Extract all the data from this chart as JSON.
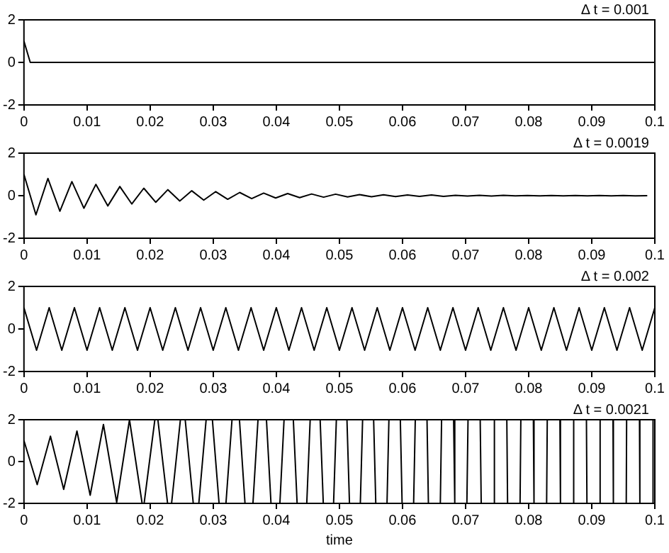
{
  "chart_data": [
    {
      "type": "line",
      "annotations": [
        "Δ t = 0.001"
      ],
      "color": "#000000",
      "x": [
        0,
        0.001,
        0.1
      ],
      "values": [
        1,
        0,
        0
      ],
      "xlim": [
        0,
        0.1
      ],
      "ylim": [
        -2,
        2
      ],
      "xticks": [
        0,
        0.01,
        0.02,
        0.03,
        0.04,
        0.05,
        0.06,
        0.07,
        0.08,
        0.09,
        0.1
      ],
      "yticks": [
        -2,
        0,
        2
      ]
    },
    {
      "type": "line",
      "annotations": [
        "Δ t = 0.0019"
      ],
      "color": "#000000",
      "x": [
        0,
        0.0019,
        0.0038,
        0.0057,
        0.0076,
        0.0095,
        0.0114,
        0.0133,
        0.0152,
        0.0171,
        0.019,
        0.0209,
        0.0228,
        0.0247,
        0.0266,
        0.0285,
        0.0304,
        0.0323,
        0.0342,
        0.0361,
        0.038,
        0.0399,
        0.0418,
        0.0437,
        0.0456,
        0.0475,
        0.0494,
        0.0513,
        0.0532,
        0.0551,
        0.057,
        0.0589,
        0.0608,
        0.0627,
        0.0646,
        0.0665,
        0.0684,
        0.0703,
        0.0722,
        0.0741,
        0.076,
        0.0779,
        0.0798,
        0.0817,
        0.0836,
        0.0855,
        0.0874,
        0.0893,
        0.0912,
        0.0931,
        0.095,
        0.0969,
        0.0988
      ],
      "values": [
        1,
        -0.9,
        0.81,
        -0.73,
        0.66,
        -0.59,
        0.53,
        -0.48,
        0.43,
        -0.39,
        0.35,
        -0.31,
        0.28,
        -0.25,
        0.23,
        -0.21,
        0.19,
        -0.17,
        0.15,
        -0.14,
        0.12,
        -0.11,
        0.1,
        -0.09,
        0.08,
        -0.07,
        0.07,
        -0.06,
        0.05,
        -0.05,
        0.04,
        -0.04,
        0.03,
        -0.03,
        0.03,
        -0.03,
        0.02,
        -0.02,
        0.02,
        -0.02,
        0.02,
        -0.01,
        0.01,
        -0.01,
        0.01,
        -0.01,
        0.01,
        -0.01,
        0.01,
        -0.01,
        0.01,
        -0.01,
        0
      ],
      "xlim": [
        0,
        0.1
      ],
      "ylim": [
        -2,
        2
      ],
      "xticks": [
        0,
        0.01,
        0.02,
        0.03,
        0.04,
        0.05,
        0.06,
        0.07,
        0.08,
        0.09,
        0.1
      ],
      "yticks": [
        -2,
        0,
        2
      ]
    },
    {
      "type": "line",
      "annotations": [
        "Δ t = 0.002"
      ],
      "color": "#000000",
      "x": [
        0,
        0.002,
        0.004,
        0.006,
        0.008,
        0.01,
        0.012,
        0.014,
        0.016,
        0.018,
        0.02,
        0.022,
        0.024,
        0.026,
        0.028,
        0.03,
        0.032,
        0.034,
        0.036,
        0.038,
        0.04,
        0.042,
        0.044,
        0.046,
        0.048,
        0.05,
        0.052,
        0.054,
        0.056,
        0.058,
        0.06,
        0.062,
        0.064,
        0.066,
        0.068,
        0.07,
        0.072,
        0.074,
        0.076,
        0.078,
        0.08,
        0.082,
        0.084,
        0.086,
        0.088,
        0.09,
        0.092,
        0.094,
        0.096,
        0.098,
        0.1
      ],
      "values": [
        1,
        -1,
        1,
        -1,
        1,
        -1,
        1,
        -1,
        1,
        -1,
        1,
        -1,
        1,
        -1,
        1,
        -1,
        1,
        -1,
        1,
        -1,
        1,
        -1,
        1,
        -1,
        1,
        -1,
        1,
        -1,
        1,
        -1,
        1,
        -1,
        1,
        -1,
        1,
        -1,
        1,
        -1,
        1,
        -1,
        1,
        -1,
        1,
        -1,
        1,
        -1,
        1,
        -1,
        1,
        -1,
        1
      ],
      "xlim": [
        0,
        0.1
      ],
      "ylim": [
        -2,
        2
      ],
      "xticks": [
        0,
        0.01,
        0.02,
        0.03,
        0.04,
        0.05,
        0.06,
        0.07,
        0.08,
        0.09,
        0.1
      ],
      "yticks": [
        -2,
        0,
        2
      ]
    },
    {
      "type": "line",
      "xlabel": "time",
      "annotations": [
        "Δ t = 0.0021"
      ],
      "color": "#000000",
      "x": [
        0,
        0.0021,
        0.0042,
        0.0063,
        0.0084,
        0.0105,
        0.0126,
        0.0147,
        0.01673,
        0.01687,
        0.01873,
        0.01905,
        0.02075,
        0.02123,
        0.02277,
        0.0234,
        0.0248,
        0.02556,
        0.02684,
        0.02772,
        0.02888,
        0.02987,
        0.03093,
        0.03202,
        0.03298,
        0.03416,
        0.03504,
        0.0363,
        0.0371,
        0.03844,
        0.03916,
        0.04057,
        0.04123,
        0.0427,
        0.0433,
        0.04483,
        0.04537,
        0.04695,
        0.04745,
        0.04908,
        0.04952,
        0.0512,
        0.0516,
        0.05332,
        0.05368,
        0.05543,
        0.05577,
        0.05755,
        0.05785,
        0.05966,
        0.05994,
        0.06177,
        0.06203,
        0.06389,
        0.06411,
        0.066,
        0.0662,
        0.06811,
        0.06829,
        0.07021,
        0.07039,
        0.07232,
        0.07248,
        0.07443,
        0.07457,
        0.07654,
        0.07666,
        0.07864,
        0.07876,
        0.08075,
        0.08085,
        0.08285,
        0.08295,
        0.08496,
        0.08504,
        0.08706,
        0.08714,
        0.08916,
        0.08924,
        0.09127,
        0.09133,
        0.09337,
        0.09343,
        0.09547,
        0.09553,
        0.09757,
        0.09763,
        0.09968,
        0.09972
      ],
      "values": [
        1,
        -1.1,
        1.21,
        -1.33,
        1.46,
        -1.61,
        1.77,
        -1.95,
        2,
        2,
        -2,
        -2,
        2,
        2,
        -2,
        -2,
        2,
        2,
        -2,
        -2,
        2,
        2,
        -2,
        -2,
        2,
        2,
        -2,
        -2,
        2,
        2,
        -2,
        -2,
        2,
        2,
        -2,
        -2,
        2,
        2,
        -2,
        -2,
        2,
        2,
        -2,
        -2,
        2,
        2,
        -2,
        -2,
        2,
        2,
        -2,
        -2,
        2,
        2,
        -2,
        -2,
        2,
        2,
        -2,
        -2,
        2,
        2,
        -2,
        -2,
        2,
        2,
        -2,
        -2,
        2,
        2,
        -2,
        -2,
        2,
        2,
        -2,
        -2,
        2,
        2,
        -2,
        -2,
        2,
        2,
        -2,
        -2,
        2,
        2,
        -2,
        -2,
        2
      ],
      "xlim": [
        0,
        0.1
      ],
      "ylim": [
        -2,
        2
      ],
      "xticks": [
        0,
        0.01,
        0.02,
        0.03,
        0.04,
        0.05,
        0.06,
        0.07,
        0.08,
        0.09,
        0.1
      ],
      "yticks": [
        -2,
        0,
        2
      ]
    }
  ]
}
